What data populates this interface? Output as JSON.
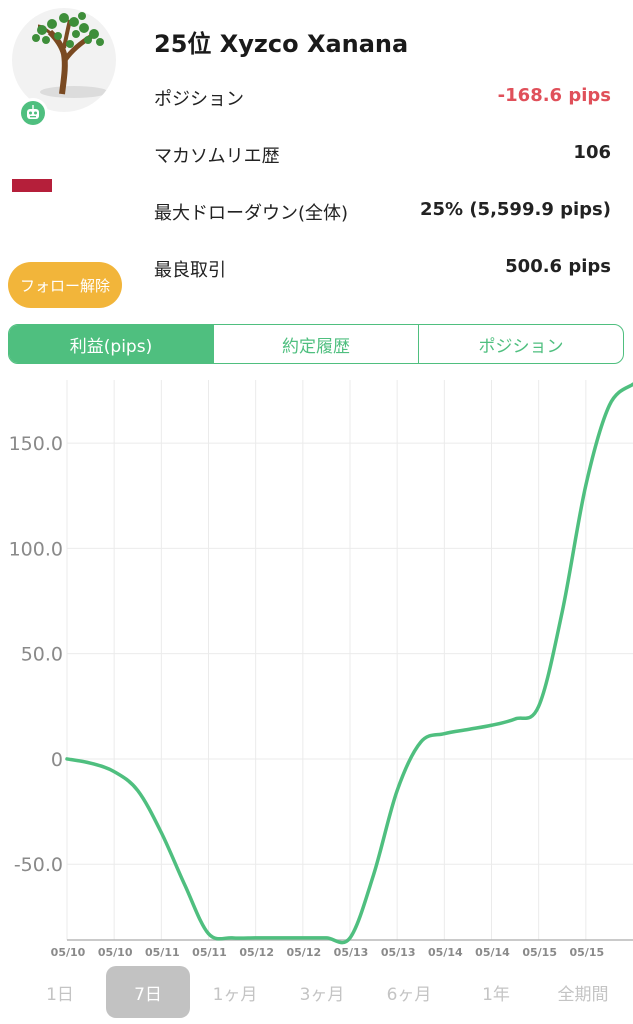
{
  "profile": {
    "title": "25位 Xyzco Xanana",
    "follow_button": "フォロー解除",
    "stats": [
      {
        "label": "ポジション",
        "value": "-168.6 pips",
        "negative": true
      },
      {
        "label": "マカソムリエ歴",
        "value": "106",
        "negative": false
      },
      {
        "label": "最大ドローダウン(全体)",
        "value": "25% (5,599.9 pips)",
        "negative": false
      },
      {
        "label": "最良取引",
        "value": "500.6 pips",
        "negative": false
      }
    ]
  },
  "tabs": [
    {
      "label": "利益(pips)",
      "active": true
    },
    {
      "label": "約定履歴",
      "active": false
    },
    {
      "label": "ポジション",
      "active": false
    }
  ],
  "colors": {
    "accent": "#4fbf7f",
    "negative": "#e0505a",
    "follow_button": "#f2b53a",
    "flag": "#b51f3a"
  },
  "chart_data": {
    "type": "line",
    "title": "",
    "xlabel": "",
    "ylabel": "",
    "ylim": [
      -86,
      180
    ],
    "yticks": [
      150,
      100,
      50,
      0,
      -50
    ],
    "ytick_labels": [
      "150.0",
      "100.0",
      "50.0",
      "0",
      "-50.0"
    ],
    "x_tick_labels": [
      "05/10",
      "05/10",
      "05/11",
      "05/11",
      "05/12",
      "05/12",
      "05/13",
      "05/13",
      "05/14",
      "05/14",
      "05/15",
      "05/15"
    ],
    "grid": true,
    "series": [
      {
        "color": "#4fbf7f",
        "x": [
          0,
          0.5,
          1,
          1.5,
          2,
          2.5,
          3,
          3.5,
          4,
          4.5,
          5,
          5.5,
          6,
          6.5,
          7,
          7.5,
          8,
          8.5,
          9,
          9.5,
          10,
          10.5,
          11,
          11.5,
          12
        ],
        "values": [
          0,
          -2,
          -6,
          -15,
          -35,
          -60,
          -83,
          -85,
          -85,
          -85,
          -85,
          -85,
          -85,
          -55,
          -15,
          8,
          12,
          14,
          16,
          19,
          25,
          70,
          130,
          168,
          178
        ]
      }
    ]
  },
  "periods": [
    {
      "label": "1日",
      "active": false
    },
    {
      "label": "7日",
      "active": true
    },
    {
      "label": "1ヶ月",
      "active": false
    },
    {
      "label": "3ヶ月",
      "active": false
    },
    {
      "label": "6ヶ月",
      "active": false
    },
    {
      "label": "1年",
      "active": false
    },
    {
      "label": "全期間",
      "active": false
    }
  ]
}
